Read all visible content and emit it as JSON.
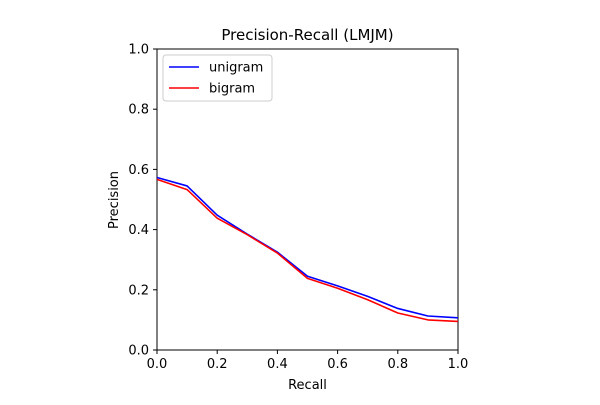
{
  "chart_data": {
    "type": "line",
    "title": "Precision-Recall (LMJM)",
    "xlabel": "Recall",
    "ylabel": "Precision",
    "xlim": [
      0.0,
      1.0
    ],
    "ylim": [
      0.0,
      1.0
    ],
    "xticks": [
      "0.0",
      "0.2",
      "0.4",
      "0.6",
      "0.8",
      "1.0"
    ],
    "yticks": [
      "0.0",
      "0.2",
      "0.4",
      "0.6",
      "0.8",
      "1.0"
    ],
    "grid": false,
    "legend_position": "top-left",
    "x": [
      0.0,
      0.1,
      0.2,
      0.3,
      0.4,
      0.5,
      0.6,
      0.7,
      0.8,
      0.9,
      1.0
    ],
    "series": [
      {
        "name": "unigram",
        "color": "#0000ff",
        "values": [
          0.573,
          0.545,
          0.448,
          0.385,
          0.325,
          0.245,
          0.213,
          0.178,
          0.138,
          0.113,
          0.107
        ]
      },
      {
        "name": "bigram",
        "color": "#ff0000",
        "values": [
          0.567,
          0.533,
          0.438,
          0.383,
          0.322,
          0.238,
          0.205,
          0.167,
          0.123,
          0.1,
          0.095
        ]
      }
    ]
  }
}
